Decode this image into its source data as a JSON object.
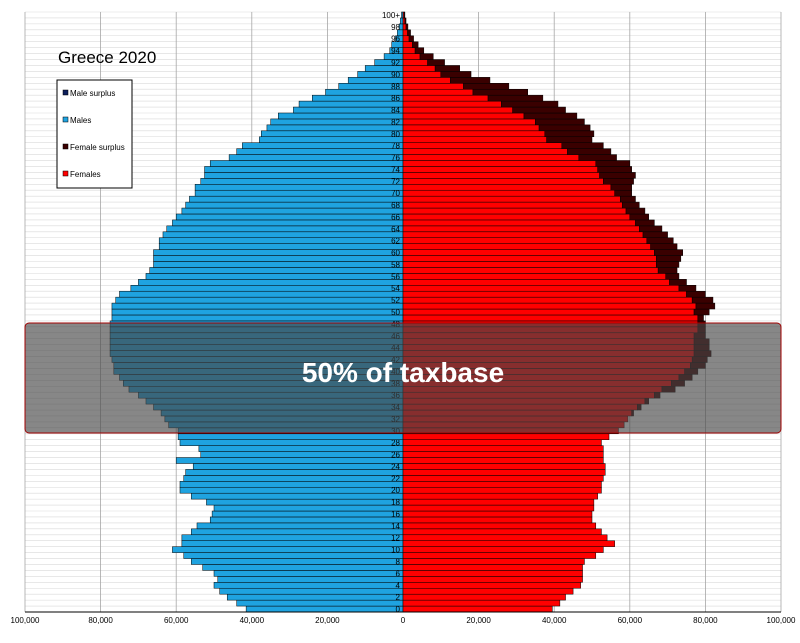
{
  "chart_data": {
    "type": "bar",
    "title": "Greece 2020",
    "orientation": "horizontal-population-pyramid",
    "x_ticks": [
      "100,000",
      "80,000",
      "60,000",
      "40,000",
      "20,000",
      "0",
      "20,000",
      "40,000",
      "60,000",
      "80,000",
      "100,000"
    ],
    "xlim": [
      -100000,
      100000
    ],
    "y_ticks": [
      "0",
      "2",
      "4",
      "6",
      "8",
      "10",
      "12",
      "14",
      "16",
      "18",
      "20",
      "22",
      "24",
      "26",
      "28",
      "30",
      "32",
      "34",
      "36",
      "38",
      "40",
      "42",
      "44",
      "46",
      "48",
      "50",
      "52",
      "54",
      "56",
      "58",
      "60",
      "62",
      "64",
      "66",
      "68",
      "70",
      "72",
      "74",
      "76",
      "78",
      "80",
      "82",
      "84",
      "86",
      "88",
      "90",
      "92",
      "94",
      "96",
      "98",
      "100+"
    ],
    "legend": [
      {
        "label": "Male surplus",
        "color": "#0d1f5c"
      },
      {
        "label": "Males",
        "color": "#1fa3e0"
      },
      {
        "label": "Female surplus",
        "color": "#3a0000"
      },
      {
        "label": "Females",
        "color": "#ff0000"
      }
    ],
    "legend_position": "top-left",
    "annotation": {
      "text": "50% of taxbase",
      "age_range": [
        30,
        48
      ]
    },
    "males": [
      41500,
      44000,
      46500,
      48500,
      50000,
      49000,
      50000,
      53000,
      56000,
      58000,
      61000,
      58500,
      58500,
      56000,
      54500,
      51000,
      50500,
      50000,
      52000,
      56000,
      59000,
      59000,
      58000,
      57500,
      55500,
      60000,
      53500,
      54000,
      59000,
      59500,
      59500,
      62000,
      63000,
      64000,
      66000,
      68000,
      70000,
      72500,
      74000,
      75000,
      76500,
      76500,
      77000,
      77500,
      77500,
      77500,
      77500,
      77500,
      77500,
      77000,
      77000,
      77000,
      76000,
      75000,
      72000,
      70000,
      68000,
      67000,
      66000,
      66000,
      66000,
      64500,
      64500,
      63500,
      62500,
      61000,
      60000,
      58500,
      57500,
      56500,
      55000,
      55000,
      53500,
      52500,
      52500,
      51000,
      46000,
      44000,
      42500,
      38000,
      37500,
      36000,
      35000,
      33000,
      29000,
      27500,
      24000,
      20500,
      17000,
      14500,
      12000,
      10000,
      7500,
      5000,
      3500,
      3000,
      2000,
      1500,
      1000,
      700,
      400
    ],
    "females": [
      39500,
      41500,
      43000,
      45000,
      47000,
      47500,
      47500,
      47500,
      48000,
      51000,
      53000,
      56000,
      54000,
      52500,
      51000,
      50000,
      50000,
      50500,
      50500,
      51500,
      52500,
      52500,
      53000,
      53500,
      53500,
      53000,
      53000,
      53000,
      52500,
      54500,
      57000,
      58500,
      59500,
      60500,
      62000,
      64000,
      66500,
      68500,
      71000,
      73000,
      74500,
      76000,
      76500,
      77000,
      77000,
      77000,
      77000,
      78000,
      78000,
      78000,
      77000,
      77500,
      76500,
      75000,
      73000,
      70500,
      69500,
      67500,
      67000,
      67000,
      66500,
      65500,
      64500,
      63500,
      62500,
      61500,
      60000,
      59000,
      58000,
      57500,
      56000,
      55000,
      53000,
      52000,
      51500,
      51000,
      46500,
      43500,
      42000,
      38000,
      37500,
      36000,
      35000,
      32000,
      29000,
      26000,
      22500,
      18500,
      16000,
      12500,
      10000,
      8500,
      6500,
      4500,
      3200,
      2500,
      1600,
      1200,
      800,
      500,
      300
    ],
    "female_surplus_ends": [
      39500,
      41500,
      43000,
      45000,
      47000,
      47500,
      47500,
      47500,
      48000,
      51000,
      53000,
      56000,
      54000,
      52500,
      51000,
      50000,
      50000,
      50500,
      50500,
      51500,
      52500,
      52500,
      53000,
      53500,
      53500,
      53000,
      53000,
      53000,
      52500,
      54500,
      57000,
      58500,
      59500,
      61000,
      63000,
      65000,
      68000,
      72000,
      74500,
      76500,
      78000,
      80000,
      80500,
      81500,
      81000,
      81000,
      80000,
      80000,
      80000,
      79500,
      81000,
      82500,
      82000,
      80000,
      77500,
      75000,
      73000,
      72500,
      73000,
      73500,
      74000,
      72500,
      71500,
      70000,
      68500,
      66500,
      65000,
      64000,
      62500,
      61500,
      60500,
      60500,
      61000,
      61500,
      60500,
      60000,
      56500,
      55000,
      53000,
      50000,
      50500,
      49500,
      48000,
      46000,
      43000,
      41000,
      37000,
      33000,
      28000,
      23000,
      18000,
      15000,
      11000,
      8000,
      5500,
      4000,
      2800,
      2000,
      1300,
      800,
      500
    ],
    "male_surplus_ends": [
      41500,
      44000,
      46500,
      48500,
      50000,
      49000,
      50000,
      53000,
      56000,
      58000,
      61000,
      58500,
      58500,
      56000,
      54500,
      51000,
      50500,
      50000,
      52000,
      56000,
      59000,
      59000,
      58000,
      57500,
      55500,
      60000,
      53500,
      54000,
      59000,
      59500,
      59500,
      62000,
      63000,
      64000,
      66000,
      68000,
      70000,
      72500,
      74000,
      75000,
      76500,
      76500,
      77000,
      77500,
      77500,
      77500,
      77500,
      77500,
      77500,
      77000,
      77000,
      77000,
      76000,
      75000,
      72000,
      70000,
      68000,
      67000,
      66000,
      66000,
      66000,
      64500,
      64500,
      63500,
      62500,
      61000,
      60000,
      58500,
      57500,
      56500,
      55000,
      55000,
      53500,
      52500,
      52500,
      51000,
      46000,
      44000,
      42500,
      38000,
      37500,
      36000,
      35000,
      33000,
      29000,
      27500,
      24000,
      20500,
      17000,
      14500,
      12000,
      10000,
      7500,
      5000,
      3500,
      3000,
      2000,
      1500,
      1000,
      700,
      400
    ]
  }
}
